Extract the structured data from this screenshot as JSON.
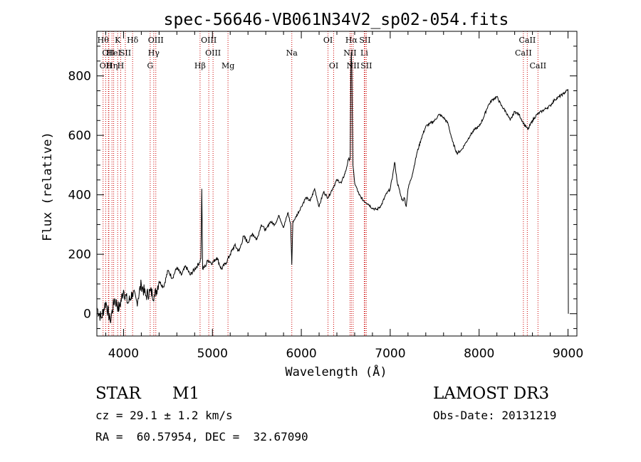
{
  "chart_data": {
    "type": "line",
    "title": "spec-56646-VB061N34V2_sp02-054.fits",
    "xlabel": "Wavelength (Å)",
    "ylabel": "Flux (relative)",
    "xlim": [
      3700,
      9100
    ],
    "ylim": [
      -75,
      950
    ],
    "x_major_ticks": [
      4000,
      5000,
      6000,
      7000,
      8000,
      9000
    ],
    "x_tick_labels": [
      "4000",
      "5000",
      "6000",
      "7000",
      "8000",
      "9000"
    ],
    "x_minor_step": 200,
    "y_major_ticks": [
      0,
      200,
      400,
      600,
      800
    ],
    "y_tick_labels": [
      "0",
      "200",
      "400",
      "600",
      "800"
    ],
    "y_minor_step": 50,
    "line_color": "#000000",
    "marker_color": "#cc0000",
    "series": [
      {
        "name": "spectrum",
        "x": [
          3700,
          3750,
          3800,
          3850,
          3900,
          3950,
          4000,
          4050,
          4100,
          4150,
          4200,
          4250,
          4300,
          4350,
          4400,
          4450,
          4500,
          4550,
          4600,
          4650,
          4700,
          4750,
          4800,
          4850,
          4870,
          4880,
          4890,
          4920,
          4950,
          5000,
          5050,
          5100,
          5150,
          5200,
          5250,
          5300,
          5350,
          5400,
          5450,
          5500,
          5550,
          5600,
          5650,
          5700,
          5750,
          5800,
          5850,
          5880,
          5893,
          5905,
          5930,
          6000,
          6050,
          6100,
          6150,
          6200,
          6250,
          6300,
          6350,
          6400,
          6450,
          6500,
          6530,
          6550,
          6558,
          6563,
          6568,
          6580,
          6600,
          6650,
          6700,
          6750,
          6800,
          6850,
          6900,
          6950,
          7000,
          7030,
          7050,
          7080,
          7100,
          7120,
          7140,
          7160,
          7180,
          7200,
          7250,
          7300,
          7350,
          7400,
          7450,
          7500,
          7550,
          7600,
          7650,
          7700,
          7750,
          7800,
          7850,
          7900,
          7950,
          8000,
          8050,
          8100,
          8150,
          8200,
          8250,
          8300,
          8350,
          8400,
          8450,
          8500,
          8550,
          8600,
          8650,
          8700,
          8750,
          8800,
          8850,
          8900,
          8950,
          9000,
          9002,
          9004
        ],
        "y": [
          20,
          -15,
          40,
          -25,
          50,
          15,
          80,
          35,
          70,
          40,
          100,
          60,
          75,
          60,
          110,
          90,
          145,
          120,
          155,
          130,
          160,
          130,
          150,
          170,
          185,
          420,
          150,
          160,
          180,
          170,
          190,
          150,
          170,
          200,
          230,
          210,
          260,
          240,
          270,
          250,
          300,
          280,
          310,
          300,
          330,
          290,
          340,
          300,
          165,
          310,
          320,
          360,
          390,
          380,
          420,
          360,
          410,
          390,
          420,
          450,
          440,
          480,
          520,
          520,
          840,
          880,
          820,
          500,
          440,
          400,
          380,
          370,
          355,
          350,
          365,
          400,
          420,
          470,
          510,
          440,
          420,
          395,
          380,
          390,
          360,
          420,
          470,
          540,
          590,
          630,
          640,
          650,
          670,
          660,
          640,
          580,
          540,
          550,
          575,
          600,
          620,
          630,
          660,
          700,
          720,
          730,
          700,
          680,
          650,
          680,
          670,
          640,
          620,
          650,
          670,
          680,
          690,
          700,
          720,
          730,
          740,
          755,
          200,
          0
        ]
      }
    ],
    "line_markers": [
      {
        "x": 3770,
        "label": "Hθ",
        "row": 0
      },
      {
        "x": 3830,
        "label": "OII",
        "row": 1
      },
      {
        "x": 3800,
        "label": "OII",
        "row": 2
      },
      {
        "x": 3835,
        "label": "",
        "row": 2
      },
      {
        "x": 3870,
        "label": "Hη",
        "row": 2
      },
      {
        "x": 3889,
        "label": "HeI",
        "row": 1
      },
      {
        "x": 3934,
        "label": "K",
        "row": 0
      },
      {
        "x": 3968,
        "label": "H",
        "row": 2
      },
      {
        "x": 4020,
        "label": "SII",
        "row": 1
      },
      {
        "x": 4102,
        "label": "Hδ",
        "row": 0
      },
      {
        "x": 4300,
        "label": "G",
        "row": 2
      },
      {
        "x": 4340,
        "label": "Hγ",
        "row": 1
      },
      {
        "x": 4363,
        "label": "OIII",
        "row": 0
      },
      {
        "x": 4861,
        "label": "Hβ",
        "row": 2
      },
      {
        "x": 4959,
        "label": "OIII",
        "row": 0
      },
      {
        "x": 5007,
        "label": "OIII",
        "row": 1
      },
      {
        "x": 5175,
        "label": "Mg",
        "row": 2
      },
      {
        "x": 5893,
        "label": "Na",
        "row": 1
      },
      {
        "x": 6300,
        "label": "OI",
        "row": 0
      },
      {
        "x": 6364,
        "label": "OI",
        "row": 2
      },
      {
        "x": 6548,
        "label": "NII",
        "row": 1
      },
      {
        "x": 6563,
        "label": "Hα",
        "row": 0
      },
      {
        "x": 6583,
        "label": "NII",
        "row": 2
      },
      {
        "x": 6708,
        "label": "Li",
        "row": 1
      },
      {
        "x": 6716,
        "label": "SII",
        "row": 0
      },
      {
        "x": 6731,
        "label": "SII",
        "row": 2
      },
      {
        "x": 8498,
        "label": "CaII",
        "row": 1
      },
      {
        "x": 8542,
        "label": "CaII",
        "row": 0
      },
      {
        "x": 8662,
        "label": "CaII",
        "row": 2
      }
    ]
  },
  "info": {
    "object_class": "STAR",
    "subclass": "M1",
    "survey": "LAMOST DR3",
    "redshift_line": "cz = 29.1 ± 1.2 km/s",
    "obs_date_line": "Obs-Date: 20131219",
    "coords_line": "RA =  60.57954, DEC =  32.67090"
  }
}
